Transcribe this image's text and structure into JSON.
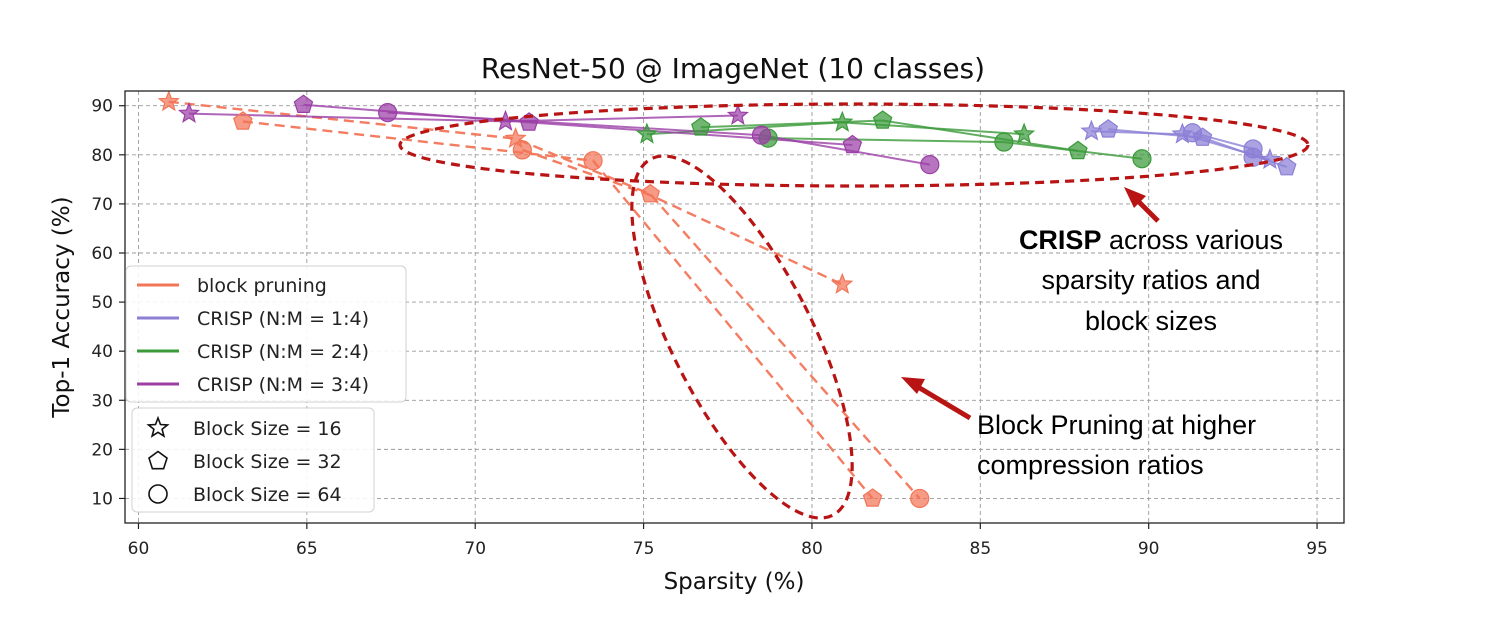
{
  "chart_data": {
    "type": "scatter",
    "title": "ResNet-50 @ ImageNet (10 classes)",
    "xlabel": "Sparsity (%)",
    "ylabel": "Top-1 Accuracy (%)",
    "xlim": [
      59.6,
      95.8
    ],
    "ylim": [
      5,
      93
    ],
    "xticks": [
      60,
      65,
      70,
      75,
      80,
      85,
      90,
      95
    ],
    "yticks": [
      10,
      20,
      30,
      40,
      50,
      60,
      70,
      80,
      90
    ],
    "grid": true,
    "legend_position": "lower-left",
    "series": [
      {
        "name": "block pruning",
        "color": "#f27558",
        "line_style": "dashed",
        "lines": [
          [
            [
              60.9,
              90.8
            ],
            [
              71.2,
              83.3
            ],
            [
              75.2,
              72.0
            ],
            [
              83.2,
              10.0
            ]
          ],
          [
            [
              63.1,
              86.8
            ],
            [
              73.5,
              78.8
            ],
            [
              81.8,
              10.0
            ]
          ],
          [
            [
              71.4,
              81.0
            ],
            [
              75.2,
              71.8
            ],
            [
              80.9,
              53.6
            ]
          ]
        ],
        "points": [
          {
            "x": 60.9,
            "y": 90.8,
            "marker": "star"
          },
          {
            "x": 71.2,
            "y": 83.3,
            "marker": "star"
          },
          {
            "x": 80.9,
            "y": 53.6,
            "marker": "star"
          },
          {
            "x": 63.1,
            "y": 86.8,
            "marker": "pentagon"
          },
          {
            "x": 75.2,
            "y": 72.0,
            "marker": "pentagon"
          },
          {
            "x": 81.8,
            "y": 10.0,
            "marker": "pentagon"
          },
          {
            "x": 71.4,
            "y": 81.0,
            "marker": "circle"
          },
          {
            "x": 73.5,
            "y": 78.8,
            "marker": "circle"
          },
          {
            "x": 83.2,
            "y": 10.0,
            "marker": "circle"
          }
        ]
      },
      {
        "name": "CRISP (N:M = 1:4)",
        "color": "#8b7fd6",
        "line_style": "solid",
        "lines": [
          [
            [
              88.3,
              84.8
            ],
            [
              91.0,
              84.2
            ],
            [
              93.6,
              79.0
            ]
          ],
          [
            [
              88.8,
              85.2
            ],
            [
              91.6,
              83.5
            ],
            [
              94.1,
              77.5
            ]
          ],
          [
            [
              91.3,
              84.5
            ],
            [
              93.1,
              81.2
            ],
            [
              93.1,
              79.5
            ]
          ]
        ],
        "points": [
          {
            "x": 88.3,
            "y": 84.8,
            "marker": "star"
          },
          {
            "x": 91.0,
            "y": 84.2,
            "marker": "star"
          },
          {
            "x": 93.6,
            "y": 79.0,
            "marker": "star"
          },
          {
            "x": 88.8,
            "y": 85.2,
            "marker": "pentagon"
          },
          {
            "x": 91.6,
            "y": 83.5,
            "marker": "pentagon"
          },
          {
            "x": 94.1,
            "y": 77.5,
            "marker": "pentagon"
          },
          {
            "x": 91.3,
            "y": 84.5,
            "marker": "circle"
          },
          {
            "x": 93.1,
            "y": 81.2,
            "marker": "circle"
          },
          {
            "x": 93.1,
            "y": 79.5,
            "marker": "circle"
          }
        ]
      },
      {
        "name": "CRISP (N:M = 2:4)",
        "color": "#3a9a3a",
        "line_style": "solid",
        "lines": [
          [
            [
              75.1,
              84.2
            ],
            [
              80.9,
              86.6
            ],
            [
              86.3,
              84.2
            ]
          ],
          [
            [
              76.7,
              85.6
            ],
            [
              82.1,
              87.0
            ],
            [
              87.9,
              80.8
            ]
          ],
          [
            [
              78.7,
              83.4
            ],
            [
              85.7,
              82.6
            ],
            [
              89.8,
              79.2
            ]
          ]
        ],
        "points": [
          {
            "x": 75.1,
            "y": 84.2,
            "marker": "star"
          },
          {
            "x": 80.9,
            "y": 86.6,
            "marker": "star"
          },
          {
            "x": 86.3,
            "y": 84.2,
            "marker": "star"
          },
          {
            "x": 76.7,
            "y": 85.6,
            "marker": "pentagon"
          },
          {
            "x": 82.1,
            "y": 87.0,
            "marker": "pentagon"
          },
          {
            "x": 87.9,
            "y": 80.8,
            "marker": "pentagon"
          },
          {
            "x": 78.7,
            "y": 83.4,
            "marker": "circle"
          },
          {
            "x": 85.7,
            "y": 82.6,
            "marker": "circle"
          },
          {
            "x": 89.8,
            "y": 79.2,
            "marker": "circle"
          }
        ]
      },
      {
        "name": "CRISP (N:M = 3:4)",
        "color": "#9b3fa6",
        "line_style": "solid",
        "lines": [
          [
            [
              61.5,
              88.4
            ],
            [
              70.9,
              86.8
            ],
            [
              77.8,
              88.0
            ]
          ],
          [
            [
              64.9,
              90.2
            ],
            [
              71.6,
              86.6
            ],
            [
              81.2,
              82.0
            ]
          ],
          [
            [
              67.4,
              88.6
            ],
            [
              78.5,
              84.0
            ],
            [
              83.5,
              78.0
            ]
          ]
        ],
        "points": [
          {
            "x": 61.5,
            "y": 88.4,
            "marker": "star"
          },
          {
            "x": 70.9,
            "y": 86.8,
            "marker": "star"
          },
          {
            "x": 77.8,
            "y": 88.0,
            "marker": "star"
          },
          {
            "x": 64.9,
            "y": 90.2,
            "marker": "pentagon"
          },
          {
            "x": 71.6,
            "y": 86.6,
            "marker": "pentagon"
          },
          {
            "x": 81.2,
            "y": 82.0,
            "marker": "pentagon"
          },
          {
            "x": 67.4,
            "y": 88.6,
            "marker": "circle"
          },
          {
            "x": 78.5,
            "y": 84.0,
            "marker": "circle"
          },
          {
            "x": 83.5,
            "y": 78.0,
            "marker": "circle"
          }
        ]
      }
    ],
    "marker_legend": [
      {
        "marker": "star",
        "label": "Block Size = 16"
      },
      {
        "marker": "pentagon",
        "label": "Block Size = 32"
      },
      {
        "marker": "circle",
        "label": "Block Size = 64"
      }
    ],
    "annotations": {
      "crisp": {
        "bold": "CRISP",
        "line1_rest": " across various",
        "line2": "sparsity ratios and",
        "line3": "block sizes",
        "color": "#b81414"
      },
      "block": {
        "line1": "Block Pruning at higher",
        "line2": "compression ratios",
        "color": "#b81414"
      }
    }
  }
}
